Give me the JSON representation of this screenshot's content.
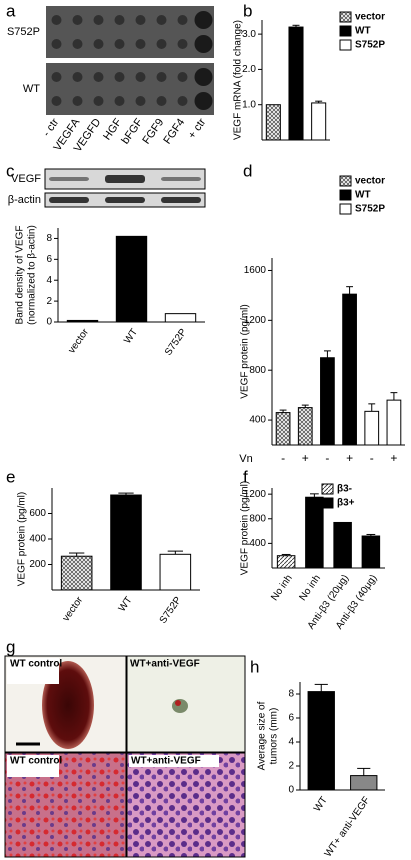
{
  "panel_a": {
    "letter": "a",
    "rows": [
      "S752P",
      "WT"
    ],
    "columns": [
      "- ctr",
      "VEGFA",
      "VEGFD",
      "HGF",
      "bFGF",
      "FGF9",
      "FGF4",
      "+ ctr"
    ]
  },
  "panel_g": {
    "letter": "g",
    "captions": [
      "WT control",
      "WT+anti-VEGF",
      "WT control",
      "WT+anti-VEGF"
    ]
  },
  "chart_data": [
    {
      "type": "bar",
      "panel": "b",
      "y_label": "VEGF mRNA (fold change)",
      "categories": [
        null,
        null,
        null
      ],
      "series": [
        {
          "name": "vector",
          "color": "#ffffff",
          "pattern": "crosshatch",
          "values": [
            1.0,
            null,
            null
          ],
          "errors": [
            null,
            null,
            null
          ]
        },
        {
          "name": "WT",
          "color": "#000000",
          "values": [
            null,
            3.2,
            null
          ],
          "errors": [
            null,
            0.05,
            null
          ]
        },
        {
          "name": "S752P",
          "color": "#ffffff",
          "values": [
            null,
            null,
            1.05
          ],
          "errors": [
            null,
            null,
            0.05
          ]
        }
      ],
      "ylim": [
        0,
        3.4
      ],
      "yticks": [
        {
          "value": 1,
          "label": "1.0"
        },
        {
          "value": 2,
          "label": "2.0"
        },
        {
          "value": 3,
          "label": "3.0"
        }
      ],
      "legend": "top-right"
    },
    {
      "type": "bar",
      "panel": "c",
      "blot_labels": [
        "VEGF",
        "β-actin"
      ],
      "y_label": [
        "Band density of VEGF",
        "(normalized to β-actin)"
      ],
      "categories": [
        "vector",
        "WT",
        "S752P"
      ],
      "values": [
        0.15,
        8.2,
        0.8
      ],
      "colors": [
        "#000000",
        "#000000",
        "#ffffff"
      ],
      "ylim": [
        0,
        9
      ],
      "yticks": [
        0,
        2,
        4,
        6,
        8
      ]
    },
    {
      "type": "bar",
      "panel": "d",
      "y_label": "VEGF protein (pg/ml)",
      "x_label": "Vn",
      "categories": [
        "-",
        "+",
        "-",
        "+",
        "-",
        "+"
      ],
      "series": [
        {
          "name": "vector",
          "color": "#ffffff",
          "pattern": "crosshatch",
          "values": [
            460,
            500,
            null,
            null,
            null,
            null
          ],
          "errors": [
            20,
            20,
            null,
            null,
            null,
            null
          ]
        },
        {
          "name": "WT",
          "color": "#000000",
          "values": [
            null,
            null,
            900,
            1410,
            null,
            null
          ],
          "errors": [
            null,
            null,
            55,
            60,
            null,
            null
          ]
        },
        {
          "name": "S752P",
          "color": "#ffffff",
          "values": [
            null,
            null,
            null,
            null,
            470,
            560
          ],
          "errors": [
            null,
            null,
            null,
            null,
            60,
            60
          ]
        }
      ],
      "ylim": [
        200,
        1700
      ],
      "yticks": [
        400,
        800,
        1200,
        1600
      ],
      "legend": "top-right"
    },
    {
      "type": "bar",
      "panel": "e",
      "y_label": "VEGF protein (pg/ml)",
      "categories": [
        "vector",
        "WT",
        "S752P"
      ],
      "values": [
        265,
        745,
        280
      ],
      "errors": [
        25,
        15,
        25
      ],
      "colors": [
        "#ffffff",
        "#000000",
        "#ffffff"
      ],
      "patterns": [
        "crosshatch",
        null,
        null
      ],
      "ylim": [
        0,
        800
      ],
      "yticks": [
        200,
        400,
        600
      ]
    },
    {
      "type": "bar",
      "panel": "f",
      "y_label": "VEGF protein (pg/ml)",
      "categories": [
        "No inh",
        "No inh",
        "Anti-β3 (20μg)",
        "Anti-β3 (40μg)"
      ],
      "series": [
        {
          "name": "β3-",
          "color": "#ffffff",
          "pattern": "diagonal",
          "values": [
            200,
            null,
            null,
            null
          ],
          "errors": [
            20,
            null,
            null,
            null
          ]
        },
        {
          "name": "β3+",
          "color": "#000000",
          "values": [
            null,
            1150,
            740,
            520
          ],
          "errors": [
            null,
            55,
            null,
            25
          ]
        }
      ],
      "ylim": [
        0,
        1300
      ],
      "yticks": [
        400,
        800,
        1200
      ],
      "legend": "top-right"
    },
    {
      "type": "bar",
      "panel": "h",
      "y_label": [
        "Average size of",
        "tumors (mm)"
      ],
      "categories": [
        "WT",
        "WT+ anti-VEGF"
      ],
      "values": [
        8.2,
        1.2
      ],
      "errors": [
        0.6,
        0.6
      ],
      "colors": [
        "#000000",
        "#888888"
      ],
      "ylim": [
        0,
        9
      ],
      "yticks": [
        0,
        2,
        4,
        6,
        8
      ]
    }
  ]
}
